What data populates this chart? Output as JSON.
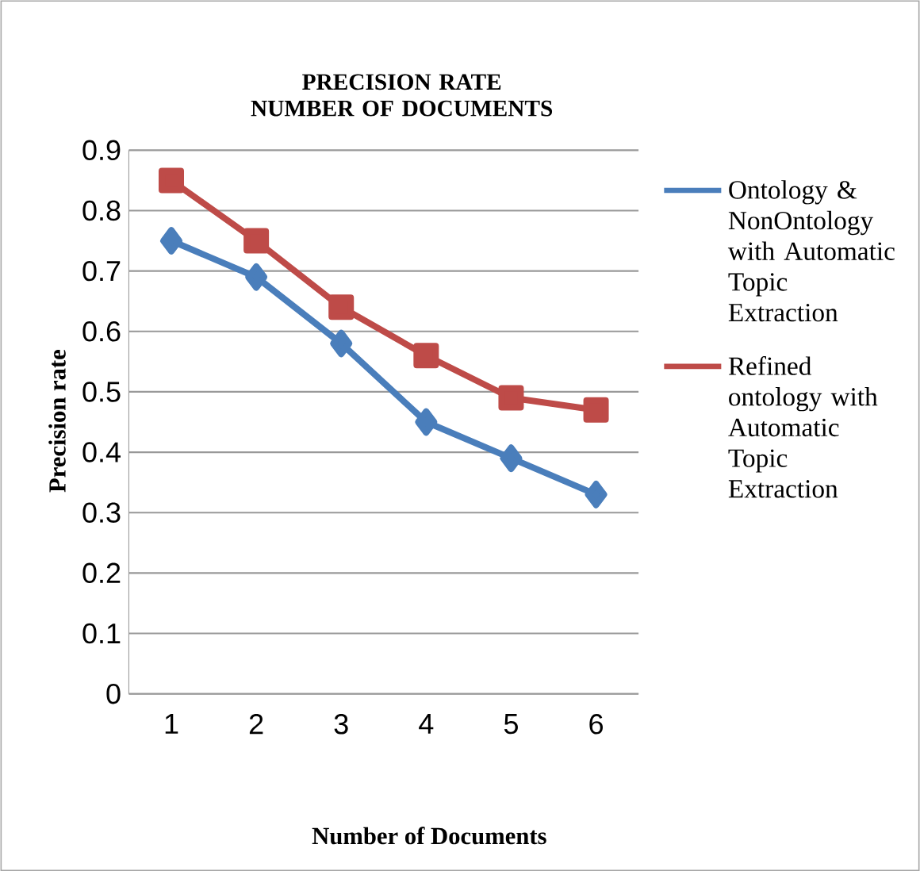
{
  "chart_data": {
    "type": "line",
    "title": "PRECISION RATE NUMBER OF DOCUMENTS",
    "xlabel": "Number of Documents",
    "ylabel": "Precision rate",
    "categories": [
      "1",
      "2",
      "3",
      "4",
      "5",
      "6"
    ],
    "series": [
      {
        "name": "Ontology & NonOntology with Automatic Topic Extraction",
        "color": "#4a7ebb",
        "marker": "diamond",
        "values": [
          0.75,
          0.69,
          0.58,
          0.45,
          0.39,
          0.33
        ]
      },
      {
        "name": "Refined ontology with Automatic Topic Extraction",
        "color": "#be4b48",
        "marker": "square",
        "values": [
          0.85,
          0.75,
          0.64,
          0.56,
          0.49,
          0.47
        ]
      }
    ],
    "ylim": [
      0,
      0.9
    ],
    "yticks": [
      0,
      0.1,
      0.2,
      0.3,
      0.4,
      0.5,
      0.6,
      0.7,
      0.8,
      0.9
    ],
    "grid": "y",
    "legend": "right"
  }
}
